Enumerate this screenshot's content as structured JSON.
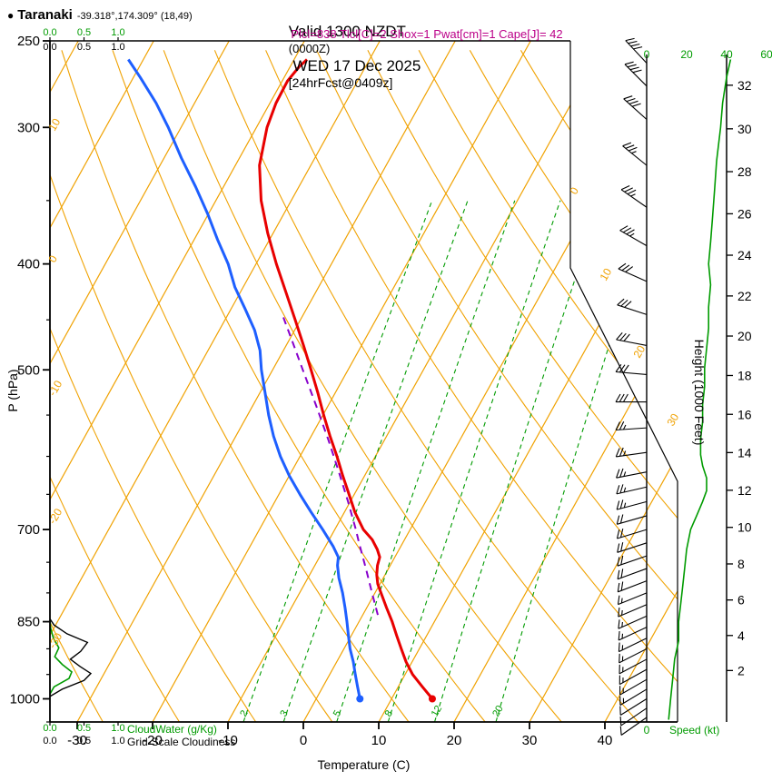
{
  "header": {
    "bullet": "●",
    "station": "Taranaki",
    "coords": "-39.318°,174.309° (18,49)",
    "valid_pre": "Valid 1300 NZDT ",
    "valid_z": "(0000Z)",
    "valid_date": " WED 17 Dec 2025 ",
    "valid_fcst": "[24hrFcst@0409z]",
    "indices": "Plcl=838 Tlcl[C]=2 Shox=1 Pwat[cm]=1 Cape[J]= 42"
  },
  "axis_labels": {
    "pressure": "P (hPa)",
    "temperature": "Temperature (C)",
    "height": "Height (1000 Feet)",
    "speed": "Speed (kt)"
  },
  "legend": {
    "cloudwater": "CloudWater (g/Kg)",
    "cloudiness": "Grid-Scale Cloudiness",
    "scale_ticks": [
      "0.0",
      "0.5",
      "1.0"
    ]
  },
  "colors": {
    "grid": "#f0a202",
    "green": "#009b00",
    "temp": "#e80000",
    "dew": "#1e5fff",
    "parcel": "#8800cc",
    "indices": "#bb0088",
    "axis": "#000000"
  },
  "chart_data": {
    "type": "skewt_log_p_sounding",
    "pressure_range_hpa": [
      250,
      1050
    ],
    "pressure_ticks": [
      250,
      300,
      400,
      500,
      700,
      850,
      1000
    ],
    "temperature_axis_c": [
      -30,
      -20,
      -10,
      0,
      10,
      20,
      30,
      40
    ],
    "height_ticks_kft": [
      2,
      4,
      6,
      8,
      10,
      12,
      14,
      16,
      18,
      20,
      22,
      24,
      26,
      28,
      30,
      32
    ],
    "speed_axis_kt": [
      0,
      20,
      40,
      60
    ],
    "isotherm_range_c": {
      "min": -90,
      "max": 50,
      "step": 10
    },
    "dry_adiabat_theta_c": {
      "min": -40,
      "max": 120,
      "step": 10
    },
    "mixing_ratio_g_kg": [
      2,
      3,
      5,
      8,
      12,
      20
    ],
    "isotherm_label_values": [
      0,
      10,
      20,
      30
    ],
    "dry_adiabat_label_values": [
      10,
      0,
      -10,
      -20,
      -30
    ],
    "surface_temperature_c": 15.4,
    "surface_dewpoint_c": 5.8,
    "temperature_profile_p_c": [
      [
        1000,
        15.4
      ],
      [
        975,
        13.2
      ],
      [
        950,
        11.0
      ],
      [
        925,
        9.2
      ],
      [
        900,
        7.6
      ],
      [
        875,
        6.0
      ],
      [
        850,
        4.4
      ],
      [
        825,
        2.6
      ],
      [
        800,
        0.8
      ],
      [
        785,
        -0.3
      ],
      [
        770,
        -1.1
      ],
      [
        755,
        -1.7
      ],
      [
        742,
        -2.0
      ],
      [
        730,
        -2.9
      ],
      [
        715,
        -4.3
      ],
      [
        700,
        -6.2
      ],
      [
        675,
        -8.6
      ],
      [
        650,
        -10.7
      ],
      [
        625,
        -12.9
      ],
      [
        600,
        -15.1
      ],
      [
        575,
        -17.5
      ],
      [
        550,
        -19.9
      ],
      [
        525,
        -22.3
      ],
      [
        500,
        -24.9
      ],
      [
        475,
        -27.7
      ],
      [
        450,
        -30.7
      ],
      [
        425,
        -33.9
      ],
      [
        400,
        -37.3
      ],
      [
        375,
        -40.7
      ],
      [
        350,
        -44.0
      ],
      [
        325,
        -46.8
      ],
      [
        300,
        -48.6
      ],
      [
        285,
        -49.2
      ],
      [
        272,
        -49.3
      ],
      [
        264,
        -48.8
      ],
      [
        260,
        -48.3
      ]
    ],
    "dewpoint_profile_p_c": [
      [
        1000,
        5.8
      ],
      [
        975,
        4.6
      ],
      [
        950,
        3.4
      ],
      [
        925,
        2.2
      ],
      [
        900,
        0.8
      ],
      [
        875,
        -0.4
      ],
      [
        850,
        -1.6
      ],
      [
        825,
        -2.9
      ],
      [
        800,
        -4.3
      ],
      [
        775,
        -5.9
      ],
      [
        755,
        -7.0
      ],
      [
        742,
        -7.5
      ],
      [
        725,
        -9.0
      ],
      [
        700,
        -11.6
      ],
      [
        675,
        -14.4
      ],
      [
        650,
        -17.2
      ],
      [
        625,
        -20.0
      ],
      [
        600,
        -22.6
      ],
      [
        575,
        -25.0
      ],
      [
        550,
        -27.2
      ],
      [
        525,
        -29.3
      ],
      [
        500,
        -31.5
      ],
      [
        480,
        -33.1
      ],
      [
        460,
        -35.3
      ],
      [
        440,
        -38.1
      ],
      [
        420,
        -41.1
      ],
      [
        400,
        -43.7
      ],
      [
        380,
        -46.9
      ],
      [
        360,
        -50.1
      ],
      [
        340,
        -53.7
      ],
      [
        320,
        -57.7
      ],
      [
        300,
        -61.7
      ],
      [
        285,
        -65.1
      ],
      [
        270,
        -69.1
      ],
      [
        260,
        -72.0
      ]
    ],
    "parcel_path_p_c": [
      [
        838,
        2.0
      ],
      [
        800,
        -0.4
      ],
      [
        760,
        -3.0
      ],
      [
        720,
        -5.8
      ],
      [
        700,
        -7.2
      ],
      [
        660,
        -10.3
      ],
      [
        620,
        -13.7
      ],
      [
        580,
        -17.4
      ],
      [
        540,
        -21.5
      ],
      [
        500,
        -26.0
      ],
      [
        470,
        -29.6
      ],
      [
        445,
        -32.8
      ]
    ],
    "wind_barbs_p_kt_dir": [
      [
        1040,
        11,
        235
      ],
      [
        1020,
        12,
        236
      ],
      [
        1000,
        12,
        238
      ],
      [
        980,
        13,
        239
      ],
      [
        960,
        13,
        240
      ],
      [
        940,
        14,
        241
      ],
      [
        920,
        14,
        242
      ],
      [
        900,
        15,
        243
      ],
      [
        880,
        15,
        244
      ],
      [
        860,
        16,
        245
      ],
      [
        840,
        16,
        246
      ],
      [
        820,
        17,
        247
      ],
      [
        800,
        17,
        248
      ],
      [
        780,
        18,
        249
      ],
      [
        760,
        18,
        250
      ],
      [
        740,
        19,
        251
      ],
      [
        720,
        20,
        252
      ],
      [
        700,
        21,
        253
      ],
      [
        680,
        22,
        254
      ],
      [
        660,
        24,
        255
      ],
      [
        640,
        26,
        257
      ],
      [
        620,
        27,
        259
      ],
      [
        595,
        27,
        262
      ],
      [
        565,
        27,
        266
      ],
      [
        535,
        28,
        270
      ],
      [
        505,
        29,
        275
      ],
      [
        475,
        30,
        281
      ],
      [
        445,
        31,
        288
      ],
      [
        415,
        32,
        294
      ],
      [
        385,
        33,
        300
      ],
      [
        355,
        34,
        305
      ],
      [
        325,
        36,
        309
      ],
      [
        295,
        38,
        312
      ],
      [
        275,
        40,
        315
      ],
      [
        262,
        42,
        317
      ]
    ],
    "wind_speed_profile_p_kt": [
      [
        1045,
        11
      ],
      [
        1000,
        12
      ],
      [
        960,
        13
      ],
      [
        920,
        14
      ],
      [
        885,
        16
      ],
      [
        850,
        16
      ],
      [
        820,
        17
      ],
      [
        790,
        18
      ],
      [
        760,
        19
      ],
      [
        730,
        20
      ],
      [
        700,
        22
      ],
      [
        680,
        25
      ],
      [
        660,
        28
      ],
      [
        645,
        30
      ],
      [
        628,
        30
      ],
      [
        612,
        28
      ],
      [
        598,
        27
      ],
      [
        578,
        27
      ],
      [
        558,
        28
      ],
      [
        538,
        28
      ],
      [
        518,
        29
      ],
      [
        498,
        29
      ],
      [
        478,
        30
      ],
      [
        458,
        31
      ],
      [
        438,
        31
      ],
      [
        418,
        32
      ],
      [
        400,
        31
      ],
      [
        382,
        32
      ],
      [
        362,
        33
      ],
      [
        342,
        34
      ],
      [
        322,
        35
      ],
      [
        300,
        37
      ],
      [
        285,
        38
      ],
      [
        270,
        40
      ],
      [
        260,
        42
      ]
    ],
    "cloud_water_p_gkg": [
      [
        990,
        0
      ],
      [
        975,
        0.06
      ],
      [
        958,
        0.28
      ],
      [
        945,
        0.32
      ],
      [
        930,
        0.18
      ],
      [
        915,
        0.07
      ],
      [
        898,
        0.13
      ],
      [
        880,
        0.05
      ],
      [
        862,
        0.01
      ],
      [
        848,
        0
      ]
    ],
    "cloudiness_p_frac": [
      [
        995,
        0
      ],
      [
        980,
        0.18
      ],
      [
        962,
        0.5
      ],
      [
        948,
        0.6
      ],
      [
        934,
        0.44
      ],
      [
        920,
        0.3
      ],
      [
        905,
        0.45
      ],
      [
        888,
        0.55
      ],
      [
        872,
        0.25
      ],
      [
        856,
        0.06
      ],
      [
        845,
        0
      ]
    ]
  }
}
